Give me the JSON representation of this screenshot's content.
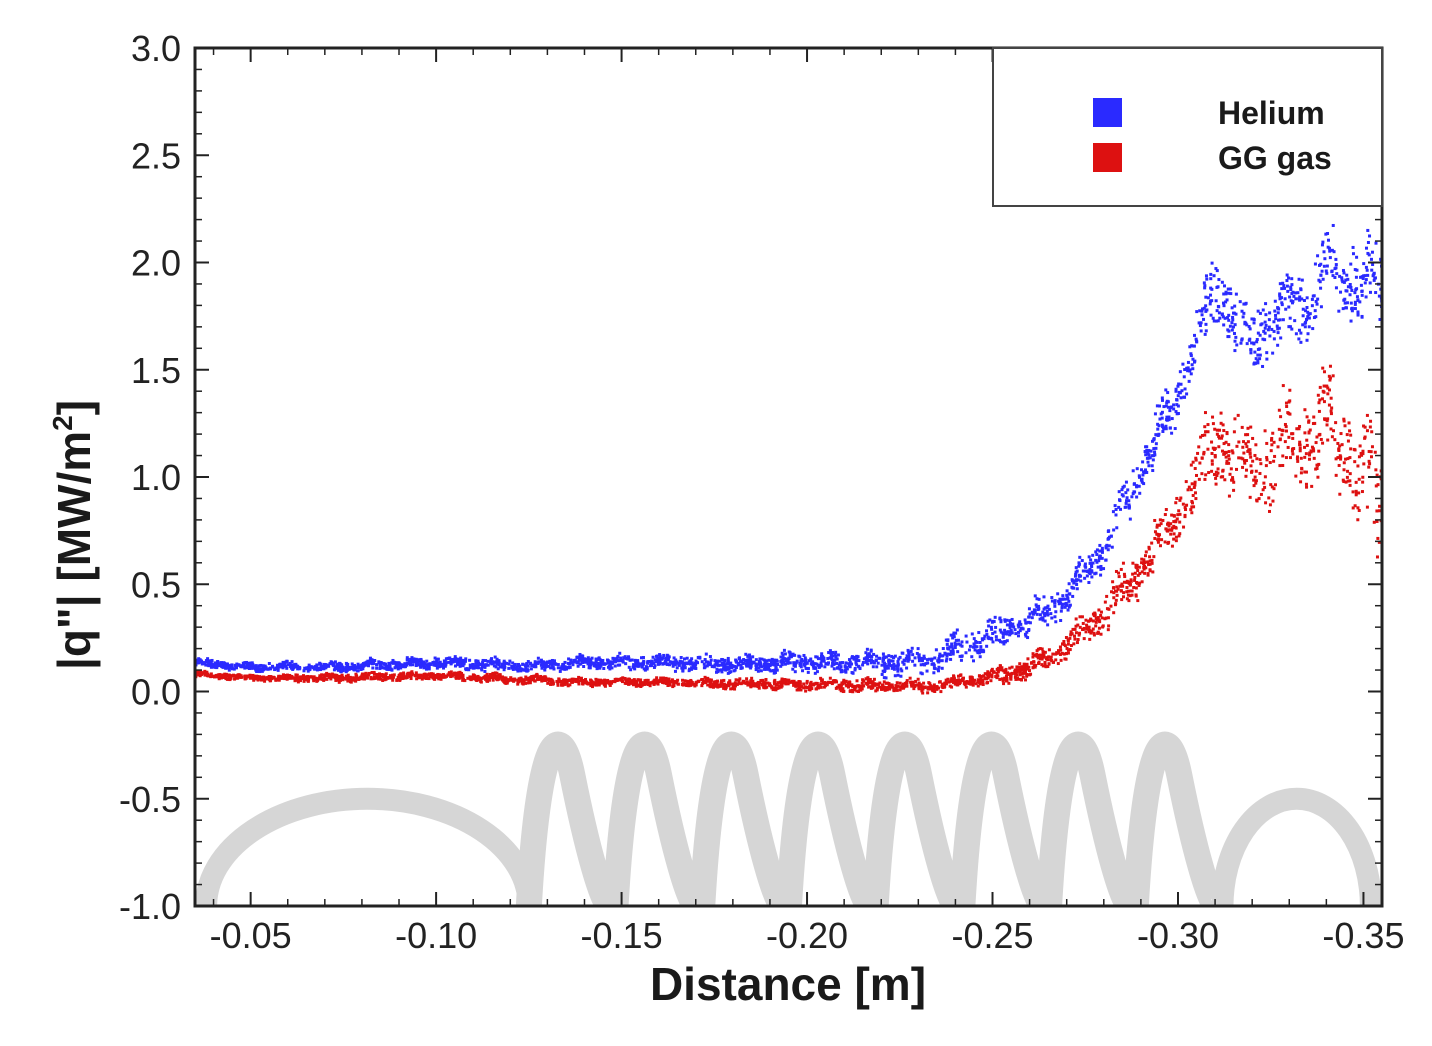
{
  "chart_data": {
    "type": "scatter",
    "xlabel": "Distance [m]",
    "ylabel": "|q\"| [MW/m",
    "ylabel_superscript": "2",
    "ylabel_close": "]",
    "xlim": [
      -0.035,
      -0.355
    ],
    "ylim": [
      -1.0,
      3.0
    ],
    "x_ticks": [
      -0.05,
      -0.1,
      -0.15,
      -0.2,
      -0.25,
      -0.3,
      -0.35
    ],
    "x_tick_labels": [
      "-0.05",
      "-0.10",
      "-0.15",
      "-0.20",
      "-0.25",
      "-0.30",
      "-0.35"
    ],
    "y_ticks": [
      -1.0,
      -0.5,
      0.0,
      0.5,
      1.0,
      1.5,
      2.0,
      2.5,
      3.0
    ],
    "y_tick_labels": [
      "-1.0",
      "-0.5",
      "0.0",
      "0.5",
      "1.0",
      "1.5",
      "2.0",
      "2.5",
      "3.0"
    ],
    "legend_position": "top-right",
    "grid": false,
    "series": [
      {
        "name": "Helium",
        "color": "#2a2aff",
        "band_halfwidth": [
          0.02,
          0.02,
          0.025,
          0.03,
          0.03,
          0.03,
          0.035,
          0.04,
          0.05,
          0.06,
          0.07,
          0.08,
          0.08,
          0.08,
          0.1,
          0.12,
          0.15,
          0.18,
          0.18,
          0.2,
          0.2
        ],
        "x": [
          -0.035,
          -0.05,
          -0.075,
          -0.1,
          -0.125,
          -0.14,
          -0.16,
          -0.18,
          -0.2,
          -0.22,
          -0.235,
          -0.25,
          -0.26,
          -0.27,
          -0.28,
          -0.29,
          -0.3,
          -0.31,
          -0.32,
          -0.34,
          -0.355
        ],
        "y": [
          0.13,
          0.11,
          0.11,
          0.13,
          0.11,
          0.13,
          0.13,
          0.12,
          0.13,
          0.12,
          0.14,
          0.25,
          0.32,
          0.42,
          0.65,
          1.0,
          1.35,
          1.85,
          1.6,
          1.9,
          1.85
        ]
      },
      {
        "name": "GG gas",
        "color": "#dd1111",
        "band_halfwidth": [
          0.015,
          0.015,
          0.02,
          0.02,
          0.02,
          0.02,
          0.02,
          0.025,
          0.03,
          0.03,
          0.03,
          0.04,
          0.05,
          0.06,
          0.1,
          0.12,
          0.12,
          0.2,
          0.22,
          0.25,
          0.3
        ],
        "x": [
          -0.035,
          -0.05,
          -0.075,
          -0.1,
          -0.125,
          -0.14,
          -0.16,
          -0.18,
          -0.2,
          -0.22,
          -0.235,
          -0.25,
          -0.26,
          -0.27,
          -0.28,
          -0.29,
          -0.3,
          -0.31,
          -0.32,
          -0.34,
          -0.355
        ],
        "y": [
          0.08,
          0.06,
          0.06,
          0.07,
          0.05,
          0.04,
          0.04,
          0.03,
          0.03,
          0.02,
          0.02,
          0.06,
          0.1,
          0.2,
          0.35,
          0.55,
          0.8,
          1.15,
          1.0,
          1.2,
          0.8
        ]
      }
    ],
    "background_shape": {
      "color": "#d6d6d6",
      "baseline": -1.0,
      "outer_arcs": [
        {
          "x_start": -0.038,
          "x_end": -0.125,
          "peak": -0.5
        },
        {
          "x_start": -0.312,
          "x_end": -0.352,
          "peak": -0.5
        }
      ],
      "coil": {
        "x_start": -0.125,
        "x_end": -0.312,
        "turns": 8,
        "peak": -0.2
      }
    }
  }
}
